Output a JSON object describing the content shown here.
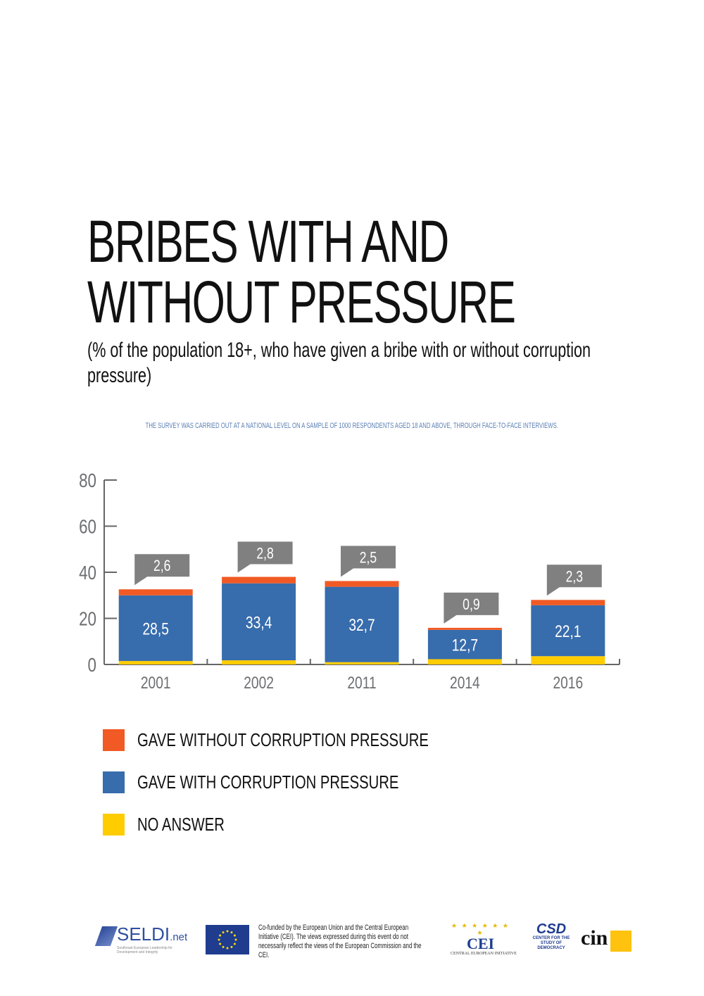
{
  "title_line1": "BRIBES WITH AND",
  "title_line2": "WITHOUT PRESSURE",
  "subtitle": "(% of the population 18+, who have given a bribe with or without corruption pressure)",
  "note": "THE SURVEY WAS CARRIED OUT AT A NATIONAL LEVEL ON A SAMPLE OF 1000 RESPONDENTS AGED 18 AND ABOVE, THROUGH FACE-TO-FACE INTERVIEWS.",
  "chart_data": {
    "type": "bar",
    "stacked": true,
    "title": "BRIBES WITH AND WITHOUT PRESSURE",
    "xlabel": "",
    "ylabel": "",
    "ylim": [
      0,
      80
    ],
    "yticks": [
      "0",
      "20",
      "40",
      "60",
      "80"
    ],
    "grid": false,
    "legend_position": "bottom-left",
    "categories": [
      "2001",
      "2002",
      "2011",
      "2014",
      "2016"
    ],
    "series": [
      {
        "name": "NO ANSWER",
        "color": "#ffcc00",
        "values": [
          1.5,
          1.8,
          1.0,
          2.3,
          3.6
        ],
        "labels": [
          "",
          "",
          "",
          "",
          ""
        ]
      },
      {
        "name": "GAVE WITH CORRUPTION PRESSURE",
        "color": "#376cad",
        "values": [
          28.5,
          33.4,
          32.7,
          12.7,
          22.1
        ],
        "labels": [
          "28,5",
          "33,4",
          "32,7",
          "12,7",
          "22,1"
        ]
      },
      {
        "name": "GAVE WITHOUT CORRUPTION PRESSURE",
        "color": "#f15a24",
        "values": [
          2.6,
          2.8,
          2.5,
          0.9,
          2.3
        ],
        "labels": [
          "2,6",
          "2,8",
          "2,5",
          "0,9",
          "2,3"
        ]
      }
    ],
    "callout_color": "#808080",
    "axis_color": "#666666"
  },
  "legend": [
    {
      "label": "GAVE WITHOUT CORRUPTION PRESSURE",
      "color": "#f15a24"
    },
    {
      "label": "GAVE WITH CORRUPTION PRESSURE",
      "color": "#376cad"
    },
    {
      "label": "NO ANSWER",
      "color": "#ffcc00"
    }
  ],
  "footer": {
    "seldi_name": "SELDI",
    "seldi_suffix": ".net",
    "seldi_tagline": "Southeast European Leadership for Development and Integrity",
    "eu_text": "Co-funded by the European Union and the Central European Initiative (CEI). The views expressed during this event do not necessarily reflect the views of the European Commission and the CEI.",
    "cei_stars": "★ ★ ★ ★ ★ ★ ★",
    "cei_name": "CEI",
    "cei_sub": "CENTRAL EUROPEAN INITIATIVE",
    "csd_name": "CSD",
    "csd_sub": "CENTER FOR THE STUDY OF DEMOCRACY",
    "cin_name": "cin"
  }
}
